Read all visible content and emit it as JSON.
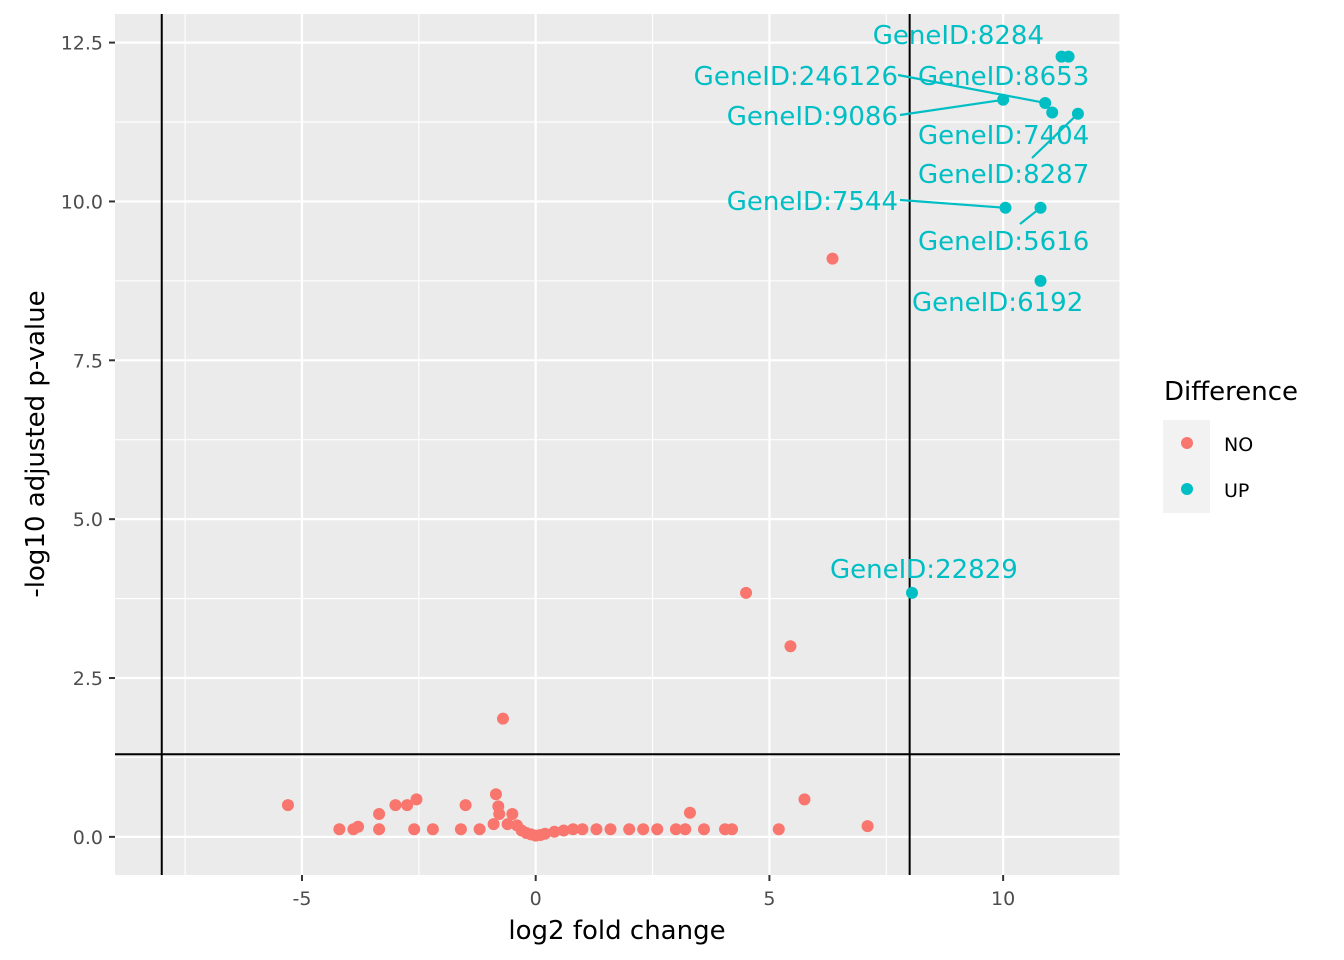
{
  "chart_data": {
    "type": "scatter",
    "title": "",
    "xlabel": "log2 fold change",
    "ylabel": "-log10 adjusted p-value",
    "xlim": [
      -9.0,
      12.5
    ],
    "ylim": [
      -0.6,
      12.95
    ],
    "x_ticks": [
      -5,
      0,
      5,
      10
    ],
    "x_tick_labels": [
      "-5",
      "0",
      "5",
      "10"
    ],
    "y_ticks": [
      0.0,
      2.5,
      5.0,
      7.5,
      10.0,
      12.5
    ],
    "y_tick_labels": [
      "0.0",
      "2.5",
      "5.0",
      "7.5",
      "10.0",
      "12.5"
    ],
    "grid": true,
    "background": "#ebebeb",
    "thresholds": {
      "vertical_lines": [
        -8,
        8
      ],
      "horizontal_lines": [
        1.3
      ]
    },
    "legend": {
      "title": "Difference",
      "position": "right",
      "entries": [
        {
          "label": "NO",
          "color": "#f8766d"
        },
        {
          "label": "UP",
          "color": "#00bfc4"
        }
      ]
    },
    "series": [
      {
        "name": "NO",
        "color": "#f8766d",
        "points": [
          [
            6.35,
            9.1
          ],
          [
            4.5,
            3.84
          ],
          [
            5.45,
            3.0
          ],
          [
            -0.7,
            1.86
          ],
          [
            -5.3,
            0.5
          ],
          [
            -4.2,
            0.12
          ],
          [
            -3.9,
            0.12
          ],
          [
            -3.8,
            0.16
          ],
          [
            -3.35,
            0.36
          ],
          [
            -3.35,
            0.12
          ],
          [
            -3.0,
            0.5
          ],
          [
            -2.75,
            0.5
          ],
          [
            -2.55,
            0.59
          ],
          [
            -2.6,
            0.12
          ],
          [
            -2.2,
            0.12
          ],
          [
            -1.6,
            0.12
          ],
          [
            -1.5,
            0.5
          ],
          [
            -1.2,
            0.12
          ],
          [
            -0.9,
            0.2
          ],
          [
            -0.85,
            0.67
          ],
          [
            -0.8,
            0.48
          ],
          [
            -0.78,
            0.36
          ],
          [
            -0.5,
            0.36
          ],
          [
            -0.6,
            0.2
          ],
          [
            -0.4,
            0.18
          ],
          [
            -0.3,
            0.1
          ],
          [
            -0.2,
            0.06
          ],
          [
            -0.1,
            0.04
          ],
          [
            0.0,
            0.02
          ],
          [
            0.1,
            0.03
          ],
          [
            0.2,
            0.05
          ],
          [
            0.4,
            0.08
          ],
          [
            0.6,
            0.1
          ],
          [
            0.8,
            0.12
          ],
          [
            1.0,
            0.12
          ],
          [
            1.3,
            0.12
          ],
          [
            1.6,
            0.12
          ],
          [
            2.0,
            0.12
          ],
          [
            2.3,
            0.12
          ],
          [
            2.6,
            0.12
          ],
          [
            3.0,
            0.12
          ],
          [
            3.2,
            0.12
          ],
          [
            3.3,
            0.38
          ],
          [
            3.6,
            0.12
          ],
          [
            4.05,
            0.12
          ],
          [
            4.2,
            0.12
          ],
          [
            5.2,
            0.12
          ],
          [
            5.75,
            0.59
          ],
          [
            7.1,
            0.17
          ]
        ]
      },
      {
        "name": "UP",
        "color": "#00bfc4",
        "points": [
          [
            8.05,
            3.84
          ],
          [
            11.25,
            12.28
          ],
          [
            11.4,
            12.28
          ],
          [
            10.9,
            11.55
          ],
          [
            11.05,
            11.4
          ],
          [
            11.6,
            11.38
          ],
          [
            10.0,
            11.6
          ],
          [
            10.05,
            9.9
          ],
          [
            10.8,
            9.9
          ],
          [
            10.8,
            8.75
          ]
        ]
      }
    ],
    "annotations": [
      {
        "text": "GeneID:8284",
        "x": 11.3,
        "y": 12.28
      },
      {
        "text": "GeneID:246126",
        "x": 10.9,
        "y": 11.55
      },
      {
        "text": "GeneID:8653",
        "x": 11.05,
        "y": 11.4
      },
      {
        "text": "GeneID:9086",
        "x": 10.0,
        "y": 11.6
      },
      {
        "text": "GeneID:7404",
        "x": 11.6,
        "y": 11.38
      },
      {
        "text": "GeneID:8287",
        "x": 11.6,
        "y": 11.38
      },
      {
        "text": "GeneID:7544",
        "x": 10.05,
        "y": 9.9
      },
      {
        "text": "GeneID:5616",
        "x": 10.8,
        "y": 9.9
      },
      {
        "text": "GeneID:6192",
        "x": 10.8,
        "y": 8.75
      },
      {
        "text": "GeneID:22829",
        "x": 8.05,
        "y": 3.84
      }
    ]
  }
}
